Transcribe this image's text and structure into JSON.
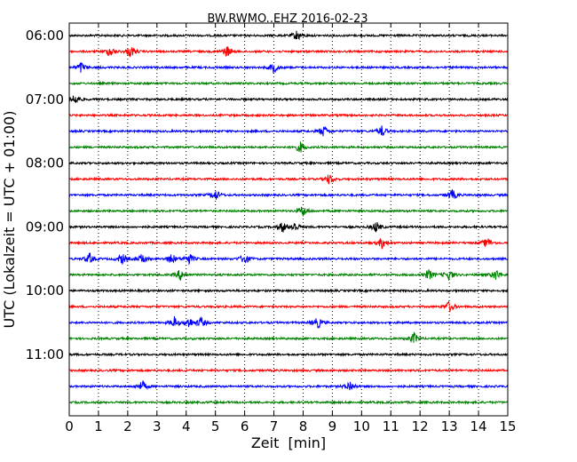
{
  "chart_data": {
    "type": "line",
    "title": "BW.RWMO..EHZ 2016-02-23",
    "xlabel": "Zeit  [min]",
    "ylabel": "UTC (Lokalzeit = UTC + 01:00)",
    "xlim": [
      0,
      15
    ],
    "x_ticks": [
      "0",
      "1",
      "2",
      "3",
      "4",
      "5",
      "6",
      "7",
      "8",
      "9",
      "10",
      "11",
      "12",
      "13",
      "14",
      "15"
    ],
    "y_ticks": [
      "06:00",
      "07:00",
      "08:00",
      "09:00",
      "10:00",
      "11:00"
    ],
    "grid": "vertical dotted",
    "trace_interval_min": 15,
    "start_time": "06:00",
    "colors": [
      "#000000",
      "#ff0000",
      "#0000ff",
      "#008000"
    ],
    "series": [
      {
        "time": "06:00",
        "events_min": [
          7.8
        ]
      },
      {
        "time": "06:15",
        "events_min": [
          1.4,
          2.1,
          5.4
        ]
      },
      {
        "time": "06:30",
        "events_min": [
          0.4,
          7.0
        ]
      },
      {
        "time": "06:45",
        "events_min": []
      },
      {
        "time": "07:00",
        "events_min": [
          0.2
        ]
      },
      {
        "time": "07:15",
        "events_min": []
      },
      {
        "time": "07:30",
        "events_min": [
          8.7,
          10.7
        ]
      },
      {
        "time": "07:45",
        "events_min": [
          7.9
        ]
      },
      {
        "time": "08:00",
        "events_min": []
      },
      {
        "time": "08:15",
        "events_min": [
          8.9
        ]
      },
      {
        "time": "08:30",
        "events_min": [
          5.0,
          13.1
        ]
      },
      {
        "time": "08:45",
        "events_min": [
          8.0
        ]
      },
      {
        "time": "09:00",
        "events_min": [
          7.3,
          7.7,
          10.5
        ]
      },
      {
        "time": "09:15",
        "events_min": [
          10.7,
          14.3
        ]
      },
      {
        "time": "09:30",
        "events_min": [
          0.7,
          1.8,
          2.5,
          3.5,
          4.1,
          6.0
        ]
      },
      {
        "time": "09:45",
        "events_min": [
          3.8,
          12.3,
          13.0,
          14.6
        ]
      },
      {
        "time": "10:00",
        "events_min": []
      },
      {
        "time": "10:15",
        "events_min": [
          13.0
        ]
      },
      {
        "time": "10:30",
        "events_min": [
          3.6,
          4.1,
          4.5,
          8.5
        ]
      },
      {
        "time": "10:45",
        "events_min": [
          11.8
        ]
      },
      {
        "time": "11:00",
        "events_min": []
      },
      {
        "time": "11:15",
        "events_min": []
      },
      {
        "time": "11:30",
        "events_min": [
          2.5,
          9.6
        ]
      },
      {
        "time": "11:45",
        "events_min": []
      }
    ]
  }
}
